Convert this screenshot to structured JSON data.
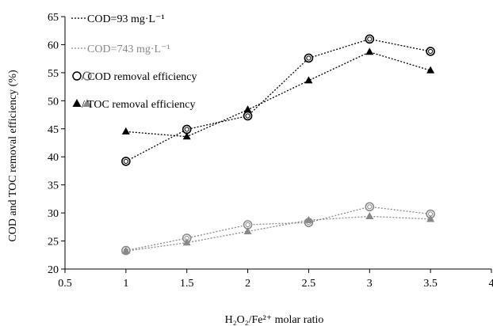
{
  "chart_data": {
    "type": "line",
    "xlabel": "H₂O₂/Fe²⁺ molar ratio",
    "ylabel": "COD and TOC removal efficiency (%)",
    "xlim": [
      0.5,
      4
    ],
    "ylim": [
      20,
      65
    ],
    "x_ticks": [
      "0.5",
      "1",
      "1.5",
      "2",
      "2.5",
      "3",
      "3.5",
      "4"
    ],
    "y_ticks": [
      "20",
      "25",
      "30",
      "35",
      "40",
      "45",
      "50",
      "55",
      "60",
      "65"
    ],
    "grid": false,
    "legend": {
      "placement": "top-left",
      "entries": [
        {
          "label": "COD=93 mg·L⁻¹",
          "marker": "dotted-line",
          "color": "#000000"
        },
        {
          "label": "COD=743 mg·L⁻¹",
          "marker": "dotted-line",
          "color": "#888888"
        },
        {
          "label": "/ COD removal efficiency",
          "marker": "circle",
          "color": "#000000"
        },
        {
          "label": "/ TOC removal efficiency",
          "marker": "triangle",
          "color": "#000000"
        }
      ]
    },
    "x": [
      1,
      1.5,
      2,
      2.5,
      3,
      3.5
    ],
    "series": [
      {
        "key": "cod_high",
        "color": "#000000",
        "marker": "circle",
        "values": [
          39.2,
          44.9,
          47.3,
          57.6,
          61.0,
          58.8
        ]
      },
      {
        "key": "toc_high",
        "color": "#000000",
        "marker": "triangle",
        "values": [
          44.5,
          43.6,
          48.4,
          53.6,
          58.7,
          55.4
        ]
      },
      {
        "key": "cod_low",
        "color": "#888888",
        "marker": "circle",
        "values": [
          23.3,
          25.5,
          27.9,
          28.3,
          31.1,
          29.8
        ]
      },
      {
        "key": "toc_low",
        "color": "#888888",
        "marker": "triangle",
        "values": [
          23.2,
          24.7,
          26.7,
          28.7,
          29.4,
          28.9
        ]
      }
    ]
  }
}
